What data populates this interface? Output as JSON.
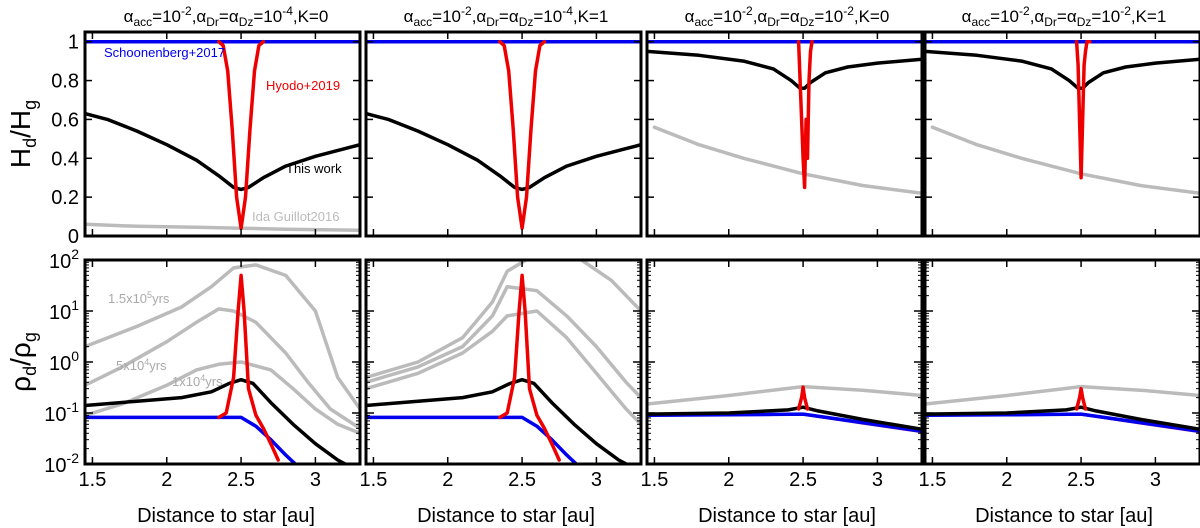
{
  "chart_data": {
    "type": "line",
    "layout": "2x4 grid",
    "column_titles": [
      {
        "base": "α",
        "s1": "acc",
        "eq1": "=10",
        "e1": "-2",
        "c1": ",α",
        "s2": "Dr",
        "eq2": "=α",
        "s3": "Dz",
        "eq3": "=10",
        "e3": "-4",
        "tail": ",K=0"
      },
      {
        "base": "α",
        "s1": "acc",
        "eq1": "=10",
        "e1": "-2",
        "c1": ",α",
        "s2": "Dr",
        "eq2": "=α",
        "s3": "Dz",
        "eq3": "=10",
        "e3": "-4",
        "tail": ",K=1"
      },
      {
        "base": "α",
        "s1": "acc",
        "eq1": "=10",
        "e1": "-2",
        "c1": ",α",
        "s2": "Dr",
        "eq2": "=α",
        "s3": "Dz",
        "eq3": "=10",
        "e3": "-2",
        "tail": ",K=0"
      },
      {
        "base": "α",
        "s1": "acc",
        "eq1": "=10",
        "e1": "-2",
        "c1": ",α",
        "s2": "Dr",
        "eq2": "=α",
        "s3": "Dz",
        "eq3": "=10",
        "e3": "-2",
        "tail": ",K=1"
      }
    ],
    "xlabel": "Distance to star [au]",
    "xlim": [
      1.45,
      3.3
    ],
    "xticks": [
      "1.5",
      "2",
      "2.5",
      "3"
    ],
    "xtick_values": [
      1.5,
      2.0,
      2.5,
      3.0
    ],
    "top_row": {
      "ylabel": {
        "base": "H",
        "s1": "d",
        "mid": "/H",
        "s2": "g"
      },
      "ylim": [
        0,
        1.05
      ],
      "yticks": [
        "0",
        "0.2",
        "0.4",
        "0.6",
        "0.8",
        "1"
      ],
      "ytick_values": [
        0,
        0.2,
        0.4,
        0.6,
        0.8,
        1.0
      ]
    },
    "bottom_row": {
      "ylabel": {
        "base": "ρ",
        "s1": "d",
        "mid": "/ρ",
        "s2": "g"
      },
      "yscale": "log",
      "ylim": [
        0.01,
        100
      ],
      "yticks": [
        {
          "b": "10",
          "e": "-2"
        },
        {
          "b": "10",
          "e": "-1"
        },
        {
          "b": "10",
          "e": "0"
        },
        {
          "b": "10",
          "e": "1"
        },
        {
          "b": "10",
          "e": "2"
        }
      ],
      "ytick_values": [
        0.01,
        0.1,
        1,
        10,
        100
      ]
    },
    "annotations": {
      "schoonenberg": "Schoonenberg+2017",
      "hyodo": "Hyodo+2019",
      "thiswork": "This work",
      "ida": "Ida Guillot2016",
      "t1": {
        "a": "1.5x10",
        "e": "5",
        "b": "yrs"
      },
      "t2": {
        "a": "5x10",
        "e": "4",
        "b": "yrs"
      },
      "t3": {
        "a": "1x10",
        "e": "4",
        "b": "yrs"
      }
    },
    "colors": {
      "schoonenberg": "#0000ee",
      "hyodo": "#ee0000",
      "thiswork": "#000000",
      "ida": "#bbbbbb",
      "purple": "#7a1fa2"
    },
    "panels": [
      {
        "row": 0,
        "col": 0,
        "series": [
          {
            "color": "ida",
            "x": [
              1.45,
              1.8,
              2.2,
              2.5,
              2.8,
              3.3
            ],
            "y": [
              0.06,
              0.05,
              0.045,
              0.04,
              0.035,
              0.03
            ]
          },
          {
            "color": "schoonenberg",
            "x": [
              1.45,
              3.3
            ],
            "y": [
              1.0,
              1.0
            ]
          },
          {
            "color": "thiswork",
            "x": [
              1.45,
              1.6,
              1.8,
              2.0,
              2.2,
              2.35,
              2.45,
              2.5,
              2.55,
              2.65,
              2.8,
              3.0,
              3.2,
              3.3
            ],
            "y": [
              0.63,
              0.6,
              0.54,
              0.47,
              0.39,
              0.31,
              0.25,
              0.24,
              0.25,
              0.3,
              0.36,
              0.41,
              0.45,
              0.47
            ]
          },
          {
            "color": "hyodo",
            "x": [
              2.35,
              2.38,
              2.41,
              2.44,
              2.47,
              2.5,
              2.53,
              2.56,
              2.59,
              2.62,
              2.65
            ],
            "y": [
              1.0,
              0.98,
              0.85,
              0.55,
              0.2,
              0.04,
              0.2,
              0.55,
              0.85,
              0.98,
              1.0
            ]
          }
        ]
      },
      {
        "row": 0,
        "col": 1,
        "series": [
          {
            "color": "schoonenberg",
            "x": [
              1.45,
              3.3
            ],
            "y": [
              1.0,
              1.0
            ]
          },
          {
            "color": "thiswork",
            "x": [
              1.45,
              1.6,
              1.8,
              2.0,
              2.2,
              2.35,
              2.45,
              2.5,
              2.55,
              2.65,
              2.8,
              3.0,
              3.2,
              3.3
            ],
            "y": [
              0.63,
              0.6,
              0.54,
              0.47,
              0.39,
              0.31,
              0.25,
              0.24,
              0.25,
              0.3,
              0.36,
              0.41,
              0.45,
              0.47
            ]
          },
          {
            "color": "hyodo",
            "x": [
              2.35,
              2.38,
              2.41,
              2.44,
              2.47,
              2.5,
              2.53,
              2.56,
              2.59,
              2.62,
              2.65
            ],
            "y": [
              1.0,
              0.98,
              0.85,
              0.55,
              0.2,
              0.04,
              0.2,
              0.55,
              0.85,
              0.98,
              1.0
            ]
          }
        ]
      },
      {
        "row": 0,
        "col": 2,
        "series": [
          {
            "color": "ida",
            "x": [
              1.5,
              1.8,
              2.1,
              2.5,
              2.9,
              3.3
            ],
            "y": [
              0.56,
              0.47,
              0.4,
              0.32,
              0.26,
              0.22
            ]
          },
          {
            "color": "schoonenberg",
            "x": [
              1.45,
              3.3
            ],
            "y": [
              1.0,
              1.0
            ]
          },
          {
            "color": "thiswork",
            "x": [
              1.45,
              1.8,
              2.1,
              2.3,
              2.42,
              2.48,
              2.51,
              2.55,
              2.65,
              2.8,
              3.0,
              3.3
            ],
            "y": [
              0.95,
              0.93,
              0.9,
              0.86,
              0.8,
              0.76,
              0.76,
              0.79,
              0.84,
              0.87,
              0.89,
              0.91
            ]
          },
          {
            "color": "hyodo",
            "x": [
              2.47,
              2.48,
              2.49,
              2.5,
              2.51,
              2.52,
              2.53,
              2.54,
              2.55,
              2.56
            ],
            "y": [
              1.0,
              0.8,
              0.6,
              0.4,
              0.25,
              0.6,
              0.4,
              0.8,
              0.95,
              1.0
            ]
          }
        ]
      },
      {
        "row": 0,
        "col": 3,
        "series": [
          {
            "color": "ida",
            "x": [
              1.5,
              1.8,
              2.1,
              2.5,
              2.9,
              3.3
            ],
            "y": [
              0.56,
              0.47,
              0.4,
              0.32,
              0.26,
              0.22
            ]
          },
          {
            "color": "schoonenberg",
            "x": [
              1.45,
              3.3
            ],
            "y": [
              1.0,
              1.0
            ]
          },
          {
            "color": "thiswork",
            "x": [
              1.45,
              1.8,
              2.1,
              2.3,
              2.42,
              2.48,
              2.51,
              2.55,
              2.65,
              2.8,
              3.0,
              3.3
            ],
            "y": [
              0.95,
              0.93,
              0.9,
              0.86,
              0.8,
              0.76,
              0.76,
              0.79,
              0.84,
              0.87,
              0.89,
              0.91
            ]
          },
          {
            "color": "hyodo",
            "x": [
              2.47,
              2.48,
              2.5,
              2.52,
              2.53,
              2.54,
              2.56
            ],
            "y": [
              1.0,
              0.88,
              0.3,
              0.88,
              0.95,
              1.0,
              1.0
            ]
          }
        ]
      },
      {
        "row": 1,
        "col": 0,
        "series": [
          {
            "color": "ida",
            "x": [
              1.45,
              1.8,
              2.1,
              2.3,
              2.45,
              2.6,
              2.8,
              3.0,
              3.15,
              3.3
            ],
            "y": [
              2.0,
              5.0,
              12.0,
              30.0,
              70.0,
              80.0,
              50.0,
              10.0,
              0.5,
              0.12
            ]
          },
          {
            "color": "ida",
            "x": [
              1.45,
              1.7,
              2.0,
              2.2,
              2.35,
              2.45,
              2.6,
              2.8,
              2.95,
              3.1,
              3.3
            ],
            "y": [
              0.35,
              0.8,
              2.5,
              6.0,
              11.0,
              10.0,
              6.0,
              1.5,
              0.4,
              0.12,
              0.05
            ]
          },
          {
            "color": "ida",
            "x": [
              1.45,
              1.7,
              2.0,
              2.2,
              2.35,
              2.5,
              2.7,
              2.85,
              3.0,
              3.15,
              3.3
            ],
            "y": [
              0.09,
              0.15,
              0.35,
              0.7,
              0.9,
              1.0,
              0.7,
              0.3,
              0.12,
              0.06,
              0.04
            ]
          },
          {
            "color": "thiswork",
            "x": [
              1.45,
              1.8,
              2.1,
              2.3,
              2.42,
              2.5,
              2.58,
              2.7,
              2.85,
              3.0,
              3.15,
              3.3
            ],
            "y": [
              0.14,
              0.17,
              0.2,
              0.26,
              0.38,
              0.45,
              0.38,
              0.16,
              0.06,
              0.025,
              0.012,
              0.007
            ]
          },
          {
            "color": "schoonenberg",
            "x": [
              1.45,
              2.5,
              2.6,
              2.7,
              2.8,
              2.9
            ],
            "y": [
              0.082,
              0.082,
              0.055,
              0.03,
              0.015,
              0.008
            ]
          },
          {
            "color": "hyodo",
            "x": [
              2.35,
              2.4,
              2.45,
              2.48,
              2.5,
              2.52,
              2.55,
              2.6,
              2.65,
              2.7,
              2.75
            ],
            "y": [
              0.082,
              0.1,
              0.5,
              10.0,
              50.0,
              10.0,
              0.3,
              0.09,
              0.05,
              0.025,
              0.012
            ]
          }
        ]
      },
      {
        "row": 1,
        "col": 1,
        "series": [
          {
            "color": "ida",
            "x": [
              1.45,
              1.8,
              2.1,
              2.3,
              2.4,
              2.55,
              2.7,
              2.9,
              3.1,
              3.3
            ],
            "y": [
              0.5,
              1.0,
              3.0,
              15.0,
              60.0,
              110.0,
              120.0,
              100.0,
              40.0,
              10.0
            ]
          },
          {
            "color": "ida",
            "x": [
              1.45,
              1.8,
              2.1,
              2.3,
              2.4,
              2.6,
              2.8,
              3.0,
              3.2,
              3.3
            ],
            "y": [
              0.4,
              0.8,
              2.0,
              8.0,
              30.0,
              25.0,
              8.0,
              2.0,
              0.4,
              0.2
            ]
          },
          {
            "color": "ida",
            "x": [
              1.45,
              1.8,
              2.1,
              2.3,
              2.4,
              2.6,
              2.8,
              3.0,
              3.2,
              3.3
            ],
            "y": [
              0.3,
              0.6,
              1.5,
              4.0,
              8.0,
              10.0,
              3.0,
              0.6,
              0.12,
              0.06
            ]
          },
          {
            "color": "thiswork",
            "x": [
              1.45,
              1.8,
              2.1,
              2.3,
              2.42,
              2.5,
              2.58,
              2.7,
              2.85,
              3.0,
              3.15,
              3.3
            ],
            "y": [
              0.14,
              0.17,
              0.2,
              0.26,
              0.38,
              0.45,
              0.38,
              0.16,
              0.06,
              0.025,
              0.012,
              0.007
            ]
          },
          {
            "color": "schoonenberg",
            "x": [
              1.45,
              2.5,
              2.6,
              2.7,
              2.8,
              2.9
            ],
            "y": [
              0.082,
              0.082,
              0.055,
              0.03,
              0.015,
              0.008
            ]
          },
          {
            "color": "hyodo",
            "x": [
              2.35,
              2.4,
              2.45,
              2.48,
              2.5,
              2.52,
              2.55,
              2.6,
              2.65,
              2.7,
              2.75
            ],
            "y": [
              0.082,
              0.1,
              0.5,
              10.0,
              50.0,
              10.0,
              0.3,
              0.09,
              0.05,
              0.025,
              0.012
            ]
          }
        ]
      },
      {
        "row": 1,
        "col": 2,
        "series": [
          {
            "color": "ida",
            "x": [
              1.45,
              2.0,
              2.5,
              2.9,
              3.3
            ],
            "y": [
              0.15,
              0.22,
              0.33,
              0.28,
              0.22
            ]
          },
          {
            "color": "purple",
            "x": [
              1.45,
              2.0,
              2.5,
              2.9,
              3.3
            ],
            "y": [
              0.088,
              0.09,
              0.092,
              0.062,
              0.042
            ]
          },
          {
            "color": "schoonenberg",
            "x": [
              1.45,
              2.0,
              2.5,
              2.9,
              3.3
            ],
            "y": [
              0.09,
              0.092,
              0.095,
              0.065,
              0.044
            ]
          },
          {
            "color": "thiswork",
            "x": [
              1.45,
              2.0,
              2.4,
              2.5,
              2.6,
              2.9,
              3.3
            ],
            "y": [
              0.095,
              0.1,
              0.115,
              0.13,
              0.11,
              0.075,
              0.048
            ]
          },
          {
            "color": "hyodo",
            "x": [
              2.47,
              2.49,
              2.5,
              2.51,
              2.53
            ],
            "y": [
              0.12,
              0.2,
              0.32,
              0.2,
              0.12
            ]
          }
        ]
      },
      {
        "row": 1,
        "col": 3,
        "series": [
          {
            "color": "ida",
            "x": [
              1.45,
              2.0,
              2.5,
              2.9,
              3.3
            ],
            "y": [
              0.15,
              0.22,
              0.33,
              0.28,
              0.22
            ]
          },
          {
            "color": "purple",
            "x": [
              1.45,
              2.0,
              2.5,
              2.9,
              3.3
            ],
            "y": [
              0.088,
              0.09,
              0.092,
              0.062,
              0.042
            ]
          },
          {
            "color": "schoonenberg",
            "x": [
              1.45,
              2.0,
              2.5,
              2.9,
              3.3
            ],
            "y": [
              0.09,
              0.092,
              0.095,
              0.065,
              0.044
            ]
          },
          {
            "color": "thiswork",
            "x": [
              1.45,
              2.0,
              2.4,
              2.5,
              2.6,
              2.9,
              3.3
            ],
            "y": [
              0.095,
              0.1,
              0.115,
              0.13,
              0.11,
              0.075,
              0.048
            ]
          },
          {
            "color": "hyodo",
            "x": [
              2.47,
              2.49,
              2.5,
              2.51,
              2.53
            ],
            "y": [
              0.12,
              0.2,
              0.3,
              0.2,
              0.12
            ]
          }
        ]
      }
    ]
  }
}
